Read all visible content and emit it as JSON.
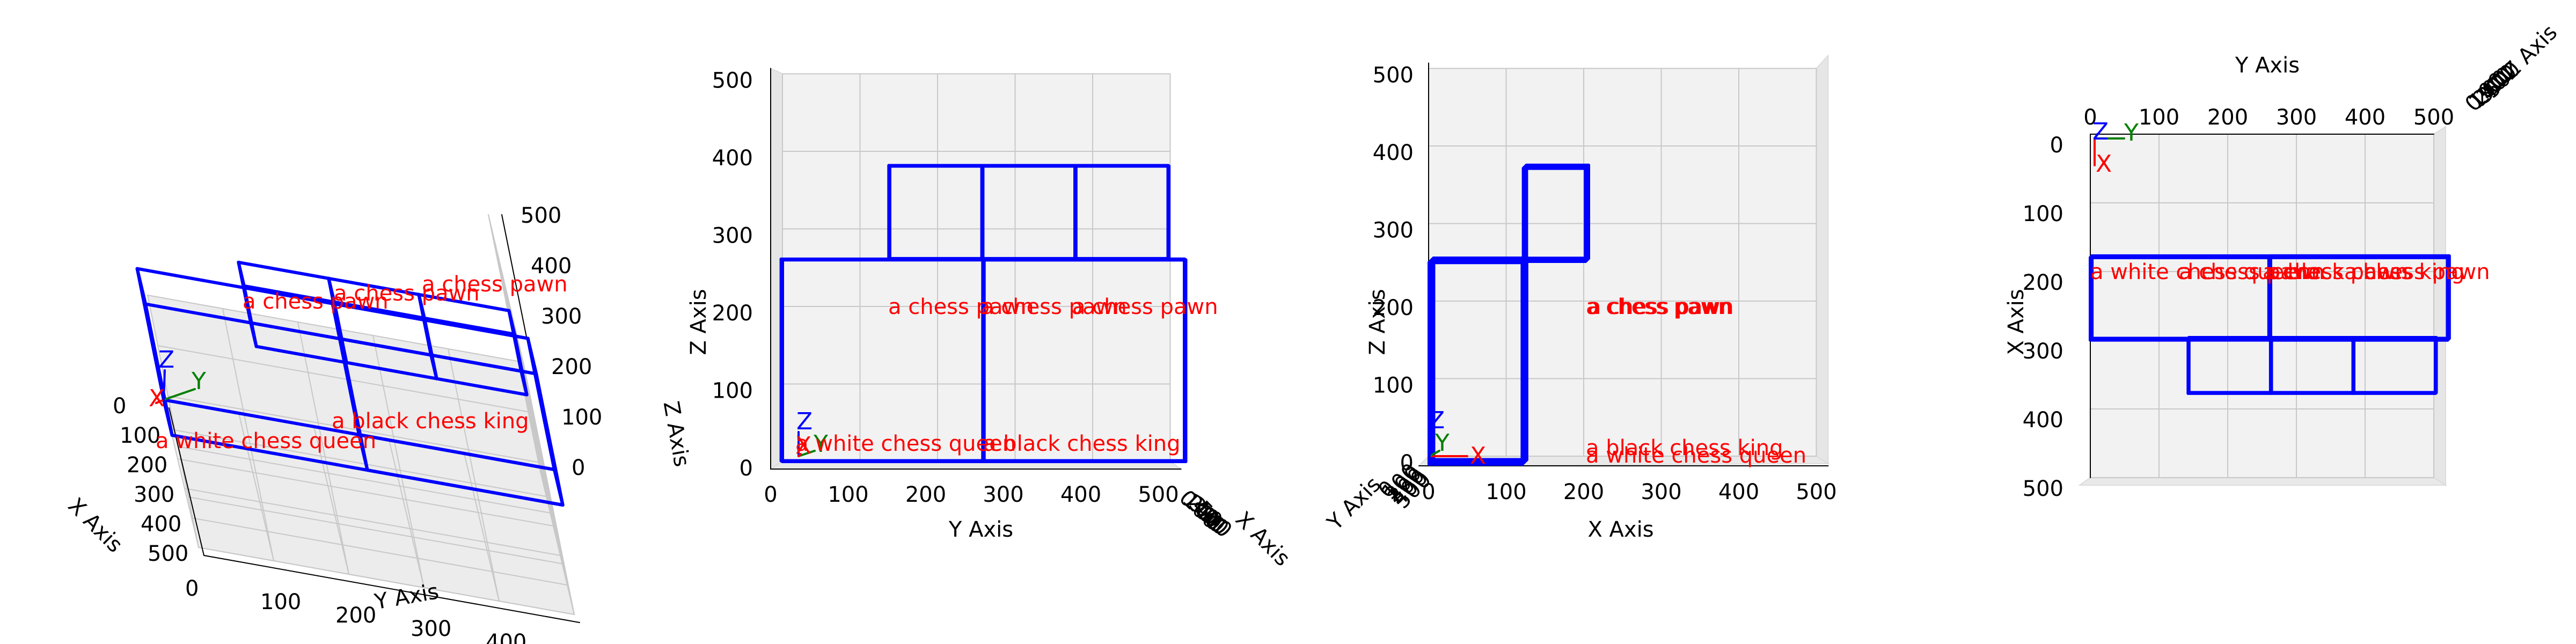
{
  "axes": {
    "x_label": "X Axis",
    "y_label": "Y Axis",
    "z_label": "Z Axis",
    "ticks": [
      "0",
      "100",
      "200",
      "300",
      "400",
      "500"
    ],
    "range": [
      0,
      500
    ]
  },
  "triad": {
    "x": "X",
    "y": "Y",
    "z": "Z"
  },
  "colors": {
    "box": "#0000ff",
    "label": "#ff0000",
    "axis_x": "#ff0000",
    "axis_y": "#008000",
    "axis_z": "#0000ff",
    "pane": "#f2f2f2",
    "grid": "#c8c8c8"
  },
  "objects": [
    {
      "label": "a white chess queen",
      "min": [
        0,
        0,
        0
      ],
      "max": [
        120,
        520,
        260
      ]
    },
    {
      "label": "a black chess king",
      "min": [
        0,
        260,
        0
      ],
      "max": [
        120,
        520,
        260
      ]
    },
    {
      "label": "a chess pawn",
      "min": [
        120,
        140,
        260
      ],
      "max": [
        200,
        260,
        380
      ]
    },
    {
      "label": "a chess pawn",
      "min": [
        120,
        260,
        260
      ],
      "max": [
        200,
        380,
        380
      ]
    },
    {
      "label": "a chess pawn",
      "min": [
        120,
        380,
        260
      ],
      "max": [
        200,
        500,
        380
      ]
    }
  ],
  "views": [
    "perspective",
    "front",
    "side",
    "top"
  ]
}
